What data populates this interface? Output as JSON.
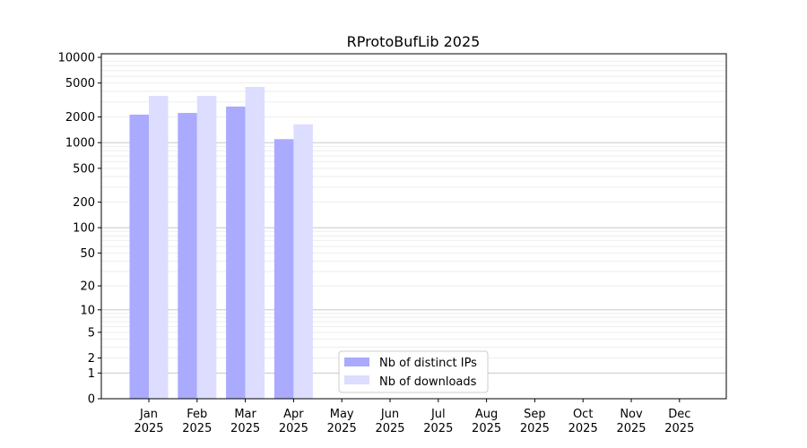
{
  "chart_data": {
    "type": "bar",
    "title": "RProtoBufLib 2025",
    "xlabel": "",
    "ylabel": "",
    "yscale": "log10(y+1)",
    "ylim": [
      0,
      10000
    ],
    "yticks": [
      0,
      1,
      2,
      5,
      10,
      20,
      50,
      100,
      200,
      500,
      1000,
      2000,
      5000,
      10000
    ],
    "categories": [
      "Jan\n2025",
      "Feb\n2025",
      "Mar\n2025",
      "Apr\n2025",
      "May\n2025",
      "Jun\n2025",
      "Jul\n2025",
      "Aug\n2025",
      "Sep\n2025",
      "Oct\n2025",
      "Nov\n2025",
      "Dec\n2025"
    ],
    "series": [
      {
        "name": "Nb of distinct IPs",
        "color": "#aaaaff",
        "values": [
          2130,
          2230,
          2650,
          1100,
          0,
          0,
          0,
          0,
          0,
          0,
          0,
          0
        ]
      },
      {
        "name": "Nb of downloads",
        "color": "#ddddff",
        "values": [
          3540,
          3540,
          4500,
          1640,
          0,
          0,
          0,
          0,
          0,
          0,
          0,
          0
        ]
      }
    ],
    "grid": true,
    "legend": "lower-center"
  }
}
